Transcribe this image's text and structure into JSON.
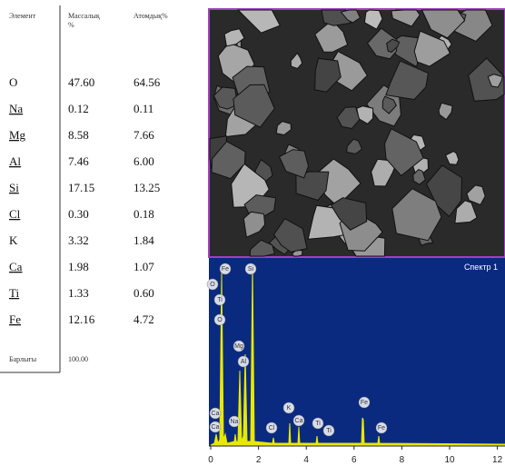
{
  "table": {
    "header": [
      "Элемент",
      "Массалық %",
      "Атомдық%"
    ],
    "rows": [
      [
        "O",
        "47.60",
        "64.56"
      ],
      [
        "Na",
        "0.12",
        "0.11"
      ],
      [
        "Mg",
        "8.58",
        "7.66"
      ],
      [
        "Al",
        "7.46",
        "6.00"
      ],
      [
        "Si",
        "17.15",
        "13.25"
      ],
      [
        "Cl",
        "0.30",
        "0.18"
      ],
      [
        "K",
        "3.32",
        "1.84"
      ],
      [
        "Ca",
        "1.98",
        "1.07"
      ],
      [
        "Ti",
        "1.33",
        "0.60"
      ],
      [
        "Fe",
        "12.16",
        "4.72"
      ]
    ],
    "total": [
      "Барлығы",
      "100.00"
    ]
  },
  "spectrum": {
    "title": "Спектр 1",
    "xticks": [
      0,
      2,
      4,
      6,
      8,
      10,
      12
    ],
    "peak_labels": [
      "O",
      "Ti",
      "O",
      "Fe",
      "Si",
      "Mg",
      "Al",
      "Ca",
      "Ca",
      "Na",
      "Cl",
      "K",
      "Ca",
      "Ti",
      "Ti",
      "Fe",
      "Fe"
    ]
  }
}
